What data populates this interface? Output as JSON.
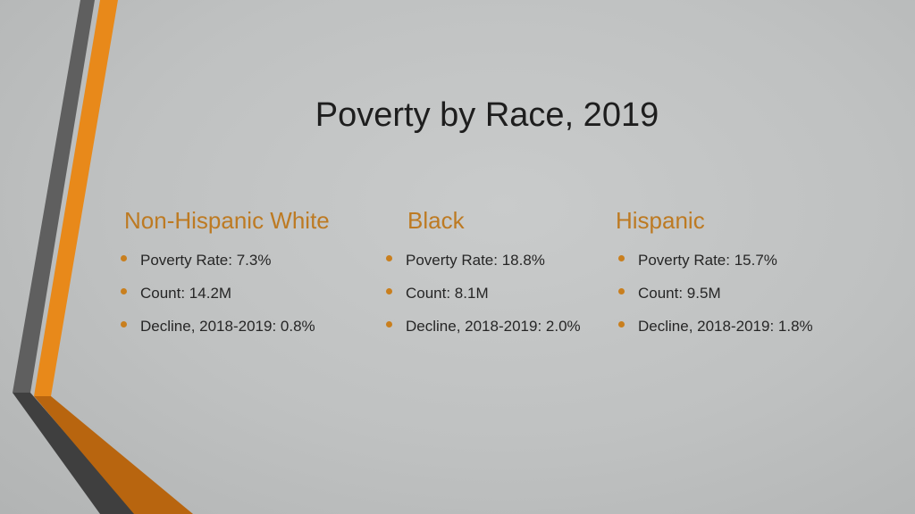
{
  "slide": {
    "title": "Poverty by Race, 2019",
    "columns": [
      {
        "heading": "Non-Hispanic White",
        "bullets": [
          "Poverty Rate: 7.3%",
          "Count: 14.2M",
          "Decline, 2018-2019: 0.8%"
        ]
      },
      {
        "heading": "Black",
        "bullets": [
          "Poverty Rate: 18.8%",
          "Count: 8.1M",
          "Decline, 2018-2019: 2.0%"
        ]
      },
      {
        "heading": "Hispanic",
        "bullets": [
          "Poverty Rate: 15.7%",
          "Count: 9.5M",
          "Decline, 2018-2019: 1.8%"
        ]
      }
    ]
  },
  "colors": {
    "accent_orange": "#e8891a",
    "accent_gray": "#5f5f5f",
    "heading": "#bd7a22",
    "background": "#c4c6c6"
  }
}
